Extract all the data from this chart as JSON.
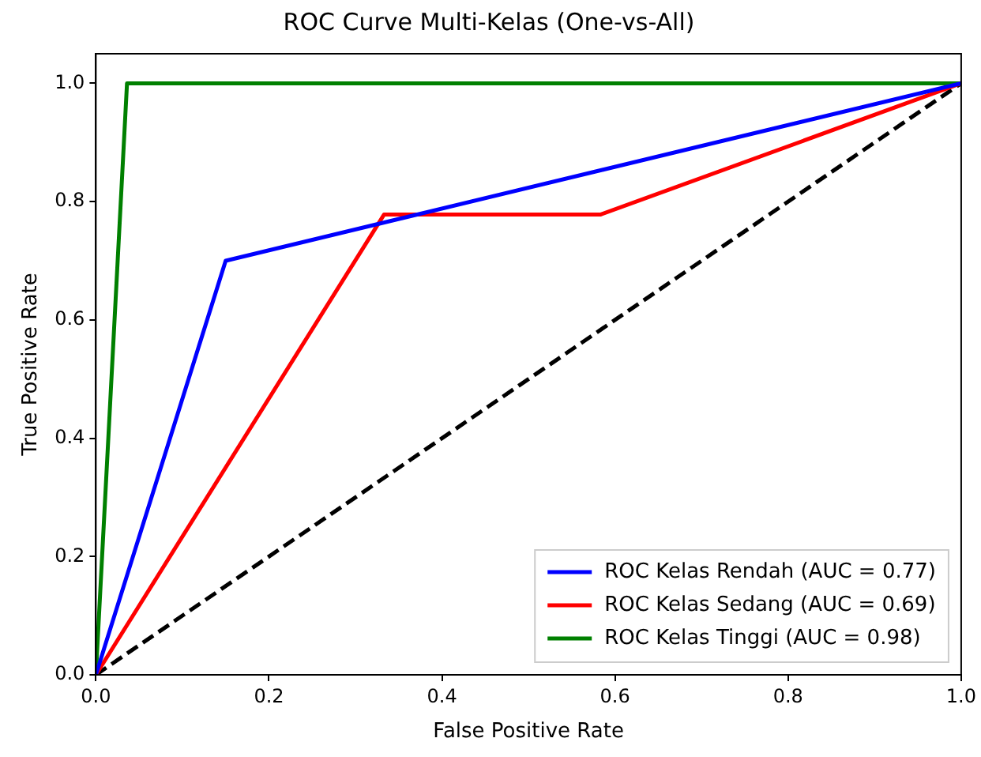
{
  "chart_data": {
    "type": "line",
    "title": "ROC Curve Multi-Kelas (One-vs-All)",
    "xlabel": "False Positive Rate",
    "ylabel": "True Positive Rate",
    "series": [
      {
        "name": "ROC Kelas Rendah (AUC = 0.77)",
        "color": "#0000ff",
        "x": [
          0,
          0.15,
          1
        ],
        "values": [
          0,
          0.7,
          1
        ]
      },
      {
        "name": "ROC Kelas Sedang (AUC = 0.69)",
        "color": "#ff0000",
        "x": [
          0,
          0.333,
          0.583,
          1
        ],
        "values": [
          0,
          0.778,
          0.778,
          1
        ]
      },
      {
        "name": "ROC Kelas Tinggi (AUC = 0.98)",
        "color": "#008000",
        "x": [
          0,
          0.036,
          1
        ],
        "values": [
          0,
          1,
          1
        ]
      },
      {
        "color": "#000000",
        "x": [
          0,
          1
        ],
        "values": [
          0,
          1
        ],
        "line_style": "dashed"
      }
    ],
    "xlim": [
      0,
      1.0
    ],
    "ylim": [
      0,
      1.05
    ],
    "xticks": [
      {
        "value": 0,
        "label": "0.0"
      },
      {
        "value": 0.2,
        "label": "0.2"
      },
      {
        "value": 0.4,
        "label": "0.4"
      },
      {
        "value": 0.6,
        "label": "0.6"
      },
      {
        "value": 0.8,
        "label": "0.8"
      },
      {
        "value": 1,
        "label": "1.0"
      }
    ],
    "yticks": [
      {
        "value": 0,
        "label": "0.0"
      },
      {
        "value": 0.2,
        "label": "0.2"
      },
      {
        "value": 0.4,
        "label": "0.4"
      },
      {
        "value": 0.6,
        "label": "0.6"
      },
      {
        "value": 0.8,
        "label": "0.8"
      },
      {
        "value": 1,
        "label": "1.0"
      }
    ],
    "grid": false,
    "legend": "bottom right",
    "marker": "none"
  }
}
